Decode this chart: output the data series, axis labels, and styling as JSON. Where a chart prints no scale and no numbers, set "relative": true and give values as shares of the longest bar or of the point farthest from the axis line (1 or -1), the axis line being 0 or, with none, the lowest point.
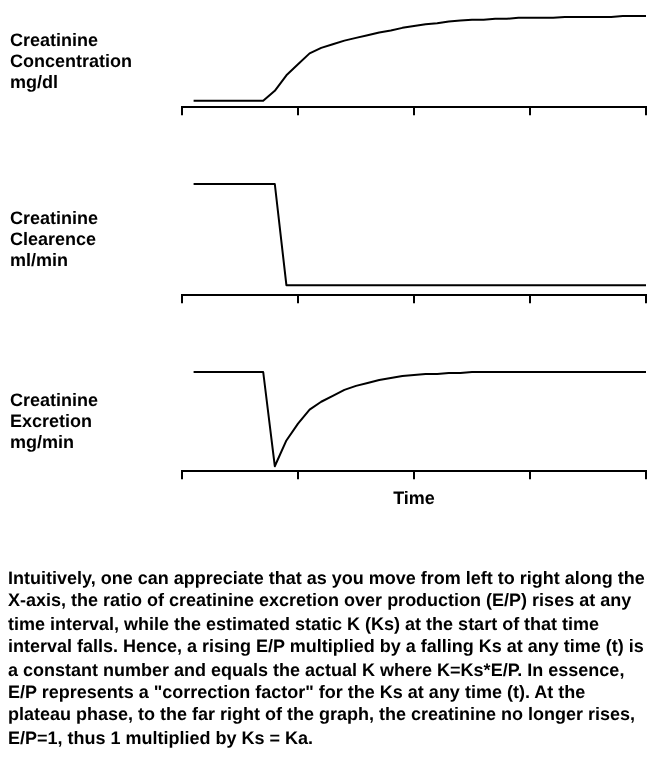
{
  "chart_data": [
    {
      "type": "line",
      "ylabel": "Creatinine Concentration mg/dl",
      "relative": true,
      "categories": [
        null,
        null,
        null,
        null,
        null,
        null,
        null,
        null,
        null,
        null,
        null,
        null,
        null,
        null,
        null,
        null,
        null,
        null,
        null,
        null,
        null,
        null,
        null,
        null,
        null,
        null,
        null,
        null,
        null,
        null,
        null,
        null,
        null,
        null,
        null,
        null,
        null,
        null,
        null,
        null,
        null
      ],
      "legend": false,
      "grid": false,
      "marker": "none",
      "line_style": "solid",
      "series": [
        {
          "color": "#000000",
          "values": [
            null,
            0.07,
            0.07,
            0.07,
            0.07,
            0.07,
            0.07,
            0.07,
            0.18,
            0.35,
            0.47,
            0.59,
            0.65,
            0.69,
            0.73,
            0.76,
            0.79,
            0.82,
            0.84,
            0.87,
            0.89,
            0.91,
            0.92,
            0.94,
            0.95,
            0.96,
            0.96,
            0.97,
            0.97,
            0.98,
            0.98,
            0.98,
            0.98,
            0.99,
            0.99,
            0.99,
            0.99,
            0.99,
            1.0,
            1.0,
            1.0
          ]
        }
      ]
    },
    {
      "type": "line",
      "ylabel": "Creatinine Clearence ml/min",
      "relative": true,
      "categories": [
        null,
        null,
        null,
        null,
        null,
        null,
        null,
        null,
        null,
        null,
        null,
        null,
        null,
        null,
        null,
        null,
        null,
        null,
        null,
        null,
        null,
        null,
        null,
        null,
        null,
        null,
        null,
        null,
        null,
        null,
        null,
        null,
        null,
        null,
        null,
        null,
        null,
        null,
        null,
        null,
        null
      ],
      "legend": false,
      "grid": false,
      "marker": "none",
      "line_style": "solid",
      "series": [
        {
          "color": "#000000",
          "values": [
            null,
            1,
            1,
            1,
            1,
            1,
            1,
            1,
            1,
            0.09,
            0.09,
            0.09,
            0.09,
            0.09,
            0.09,
            0.09,
            0.09,
            0.09,
            0.09,
            0.09,
            0.09,
            0.09,
            0.09,
            0.09,
            0.09,
            0.09,
            0.09,
            0.09,
            0.09,
            0.09,
            0.09,
            0.09,
            0.09,
            0.09,
            0.09,
            0.09,
            0.09,
            0.09,
            0.09,
            0.09,
            0.09
          ]
        }
      ]
    },
    {
      "type": "line",
      "ylabel": "Creatinine Excretion mg/min",
      "xlabel": "Time",
      "relative": true,
      "categories": [
        null,
        null,
        null,
        null,
        null,
        null,
        null,
        null,
        null,
        null,
        null,
        null,
        null,
        null,
        null,
        null,
        null,
        null,
        null,
        null,
        null,
        null,
        null,
        null,
        null,
        null,
        null,
        null,
        null,
        null,
        null,
        null,
        null,
        null,
        null,
        null,
        null,
        null,
        null,
        null,
        null
      ],
      "legend": false,
      "grid": false,
      "marker": "none",
      "line_style": "solid",
      "series": [
        {
          "color": "#000000",
          "values": [
            null,
            1,
            1,
            1,
            1,
            1,
            1,
            1,
            0.05,
            0.31,
            0.48,
            0.62,
            0.7,
            0.76,
            0.82,
            0.86,
            0.89,
            0.92,
            0.94,
            0.96,
            0.97,
            0.98,
            0.98,
            0.99,
            0.99,
            1.0,
            1.0,
            1.0,
            1.0,
            1.0,
            1.0,
            1.0,
            1.0,
            1.0,
            1.0,
            1.0,
            1.0,
            1.0,
            1.0,
            1.0,
            1.0
          ]
        }
      ],
      "annotations": [
        "Intuitively, one can appreciate that as you move from left to right along the X-axis, the ratio of creatinine excretion over production (E/P) rises at any time interval, while the estimated static K (Ks) at the start of that time interval falls. Hence, a rising E/P multiplied by a falling Ks at any time (t) is a constant number and equals the actual K where K=Ks*E/P. In essence, E/P represents a \"correction factor\" for the Ks at any time (t). At the plateau phase, to the far right of the graph, the creatinine no longer rises, E/P=1, thus 1 multiplied by Ks = Ka."
      ]
    }
  ]
}
